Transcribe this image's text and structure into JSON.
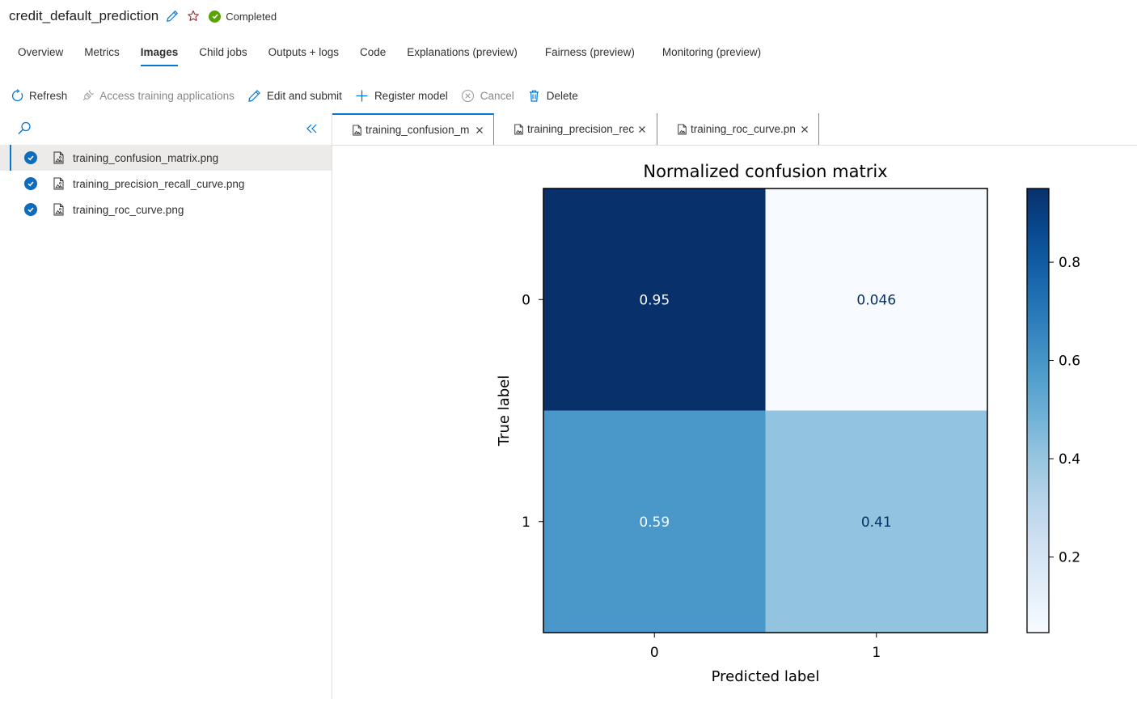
{
  "header": {
    "title": "credit_default_prediction",
    "status": "Completed",
    "colors": {
      "status": "#57a300",
      "edit": "#0078d4",
      "star": "#a4262c"
    }
  },
  "tabs": [
    {
      "label": "Overview"
    },
    {
      "label": "Metrics"
    },
    {
      "label": "Images",
      "active": true
    },
    {
      "label": "Child jobs"
    },
    {
      "label": "Outputs + logs"
    },
    {
      "label": "Code"
    },
    {
      "label": "Explanations (preview)"
    },
    {
      "label": "Fairness (preview)"
    },
    {
      "label": "Monitoring (preview)"
    }
  ],
  "toolbar": [
    {
      "label": "Refresh",
      "icon": "refresh-icon"
    },
    {
      "label": "Access training applications",
      "icon": "plug-icon",
      "disabled": true
    },
    {
      "label": "Edit and submit",
      "icon": "pencil-icon"
    },
    {
      "label": "Register model",
      "icon": "plus-icon"
    },
    {
      "label": "Cancel",
      "icon": "cancel-circle-icon",
      "disabled": true
    },
    {
      "label": "Delete",
      "icon": "trash-icon"
    }
  ],
  "files": [
    {
      "name": "training_confusion_matrix.png",
      "selected": true
    },
    {
      "name": "training_precision_recall_curve.png"
    },
    {
      "name": "training_roc_curve.png"
    }
  ],
  "image_tabs": [
    {
      "label": "training_confusion_m",
      "active": true
    },
    {
      "label": "training_precision_rec"
    },
    {
      "label": "training_roc_curve.pn"
    }
  ],
  "chart_data": {
    "type": "heatmap",
    "title": "Normalized confusion matrix",
    "xlabel": "Predicted label",
    "ylabel": "True label",
    "x_categories": [
      "0",
      "1"
    ],
    "y_categories": [
      "0",
      "1"
    ],
    "values": [
      [
        0.95,
        0.046
      ],
      [
        0.59,
        0.41
      ]
    ],
    "value_labels": [
      [
        "0.95",
        "0.046"
      ],
      [
        "0.59",
        "0.41"
      ]
    ],
    "colorbar": {
      "range": [
        0.046,
        0.95
      ],
      "ticks": [
        0.2,
        0.4,
        0.6,
        0.8
      ],
      "tick_labels": [
        "0.2",
        "0.4",
        "0.6",
        "0.8"
      ]
    },
    "colormap": "Blues"
  }
}
